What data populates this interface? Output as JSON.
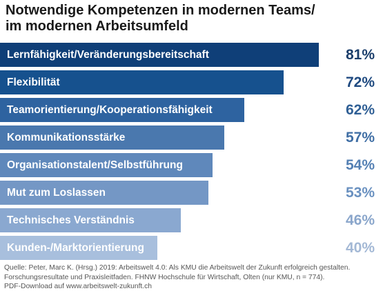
{
  "chart_data": {
    "type": "bar",
    "orientation": "horizontal",
    "title": [
      "Notwendige Kompetenzen in modernen Teams/",
      "im modernen Arbeitsumfeld"
    ],
    "categories": [
      "Lernfähigkeit/Veränderungsbereitschaft",
      "Flexibilität",
      "Teamorientierung/Kooperationsfähigkeit",
      "Kommunikationsstärke",
      "Organisationstalent/Selbstführung",
      "Mut zum Loslassen",
      "Technisches Verständnis",
      "Kunden-/Marktorientierung"
    ],
    "values": [
      81,
      72,
      62,
      57,
      54,
      53,
      46,
      40
    ],
    "value_labels": [
      "81%",
      "72%",
      "62%",
      "57%",
      "54%",
      "53%",
      "46%",
      "40%"
    ],
    "unit": "%",
    "bar_colors": [
      "#0f3f78",
      "#16518e",
      "#2e63a0",
      "#4a78ae",
      "#5f88bb",
      "#7497c5",
      "#8aa8d0",
      "#a8bfdd"
    ],
    "value_colors": [
      "#1b3e6b",
      "#1f4a80",
      "#2f5f95",
      "#406fa5",
      "#5581b4",
      "#6a91c0",
      "#8aa6cb",
      "#a3b8d5"
    ],
    "grid": false,
    "legend": "none"
  },
  "source": [
    "Quelle: Peter, Marc K. (Hrsg.) 2019: Arbeitswelt 4.0: Als KMU die Arbeitswelt der Zukunft erfolgreich gestalten.",
    "Forschungsresultate und Praxisleitfaden. FHNW Hochschule für Wirtschaft, Olten (nur KMU, n = 774).",
    "PDF-Download auf www.arbeitswelt-zukunft.ch"
  ]
}
